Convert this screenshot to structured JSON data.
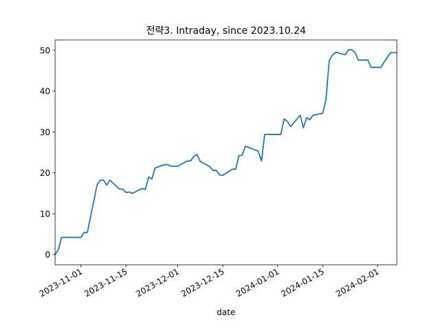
{
  "chart_data": {
    "type": "line",
    "title": "전략3. Intraday, since 2023.10.24",
    "xlabel": "date",
    "ylabel": "",
    "x_tick_labels": [
      "2023-11-01",
      "2023-11-15",
      "2023-12-01",
      "2023-12-15",
      "2024-01-01",
      "2024-01-15",
      "2024-02-01"
    ],
    "x_tick_dates": [
      "2023-11-01",
      "2023-11-15",
      "2023-12-01",
      "2023-12-15",
      "2024-01-01",
      "2024-01-15",
      "2024-02-01"
    ],
    "y_tick_labels": [
      "0",
      "10",
      "20",
      "30",
      "40",
      "50"
    ],
    "y_ticks": [
      0,
      10,
      20,
      30,
      40,
      50
    ],
    "xlim": [
      "2023-10-24",
      "2024-02-07"
    ],
    "ylim": [
      -2.5,
      52.5
    ],
    "grid": false,
    "line_color": "#1f77b4",
    "series": [
      {
        "x": [
          "2023-10-24",
          "2023-10-25",
          "2023-10-26",
          "2023-10-27",
          "2023-10-30",
          "2023-10-31",
          "2023-11-01",
          "2023-11-02",
          "2023-11-03",
          "2023-11-06",
          "2023-11-07",
          "2023-11-08",
          "2023-11-09",
          "2023-11-10",
          "2023-11-13",
          "2023-11-14",
          "2023-11-15",
          "2023-11-16",
          "2023-11-17",
          "2023-11-20",
          "2023-11-21",
          "2023-11-22",
          "2023-11-23",
          "2023-11-24",
          "2023-11-27",
          "2023-11-28",
          "2023-11-29",
          "2023-11-30",
          "2023-12-01",
          "2023-12-04",
          "2023-12-05",
          "2023-12-06",
          "2023-12-07",
          "2023-12-08",
          "2023-12-11",
          "2023-12-12",
          "2023-12-13",
          "2023-12-14",
          "2023-12-15",
          "2023-12-18",
          "2023-12-19",
          "2023-12-20",
          "2023-12-21",
          "2023-12-22",
          "2023-12-26",
          "2023-12-27",
          "2023-12-28",
          "2023-12-29",
          "2024-01-02",
          "2024-01-03",
          "2024-01-04",
          "2024-01-05",
          "2024-01-08",
          "2024-01-09",
          "2024-01-10",
          "2024-01-11",
          "2024-01-12",
          "2024-01-15",
          "2024-01-16",
          "2024-01-17",
          "2024-01-18",
          "2024-01-19",
          "2024-01-22",
          "2024-01-23",
          "2024-01-24",
          "2024-01-25",
          "2024-01-26",
          "2024-01-29",
          "2024-01-30",
          "2024-01-31",
          "2024-02-01",
          "2024-02-02",
          "2024-02-05",
          "2024-02-06",
          "2024-02-07"
        ],
        "y": [
          0.0,
          1.2,
          4.2,
          4.2,
          4.2,
          4.2,
          4.2,
          5.4,
          5.4,
          17.0,
          18.2,
          18.2,
          17.0,
          18.2,
          16.0,
          16.0,
          15.2,
          15.3,
          15.0,
          16.2,
          15.9,
          19.0,
          18.5,
          21.2,
          22.0,
          22.0,
          21.6,
          21.6,
          21.6,
          22.9,
          22.9,
          24.0,
          24.5,
          22.8,
          21.5,
          20.6,
          20.6,
          19.5,
          19.4,
          20.9,
          20.9,
          24.2,
          24.3,
          26.5,
          25.3,
          22.9,
          29.4,
          29.4,
          29.4,
          33.2,
          32.6,
          31.3,
          34.1,
          31.0,
          33.5,
          33.0,
          34.1,
          34.6,
          37.9,
          47.4,
          48.8,
          49.5,
          48.9,
          50.1,
          50.1,
          49.5,
          47.6,
          47.6,
          45.8,
          45.8,
          45.8,
          45.8,
          49.4,
          49.4,
          49.4
        ]
      }
    ]
  }
}
